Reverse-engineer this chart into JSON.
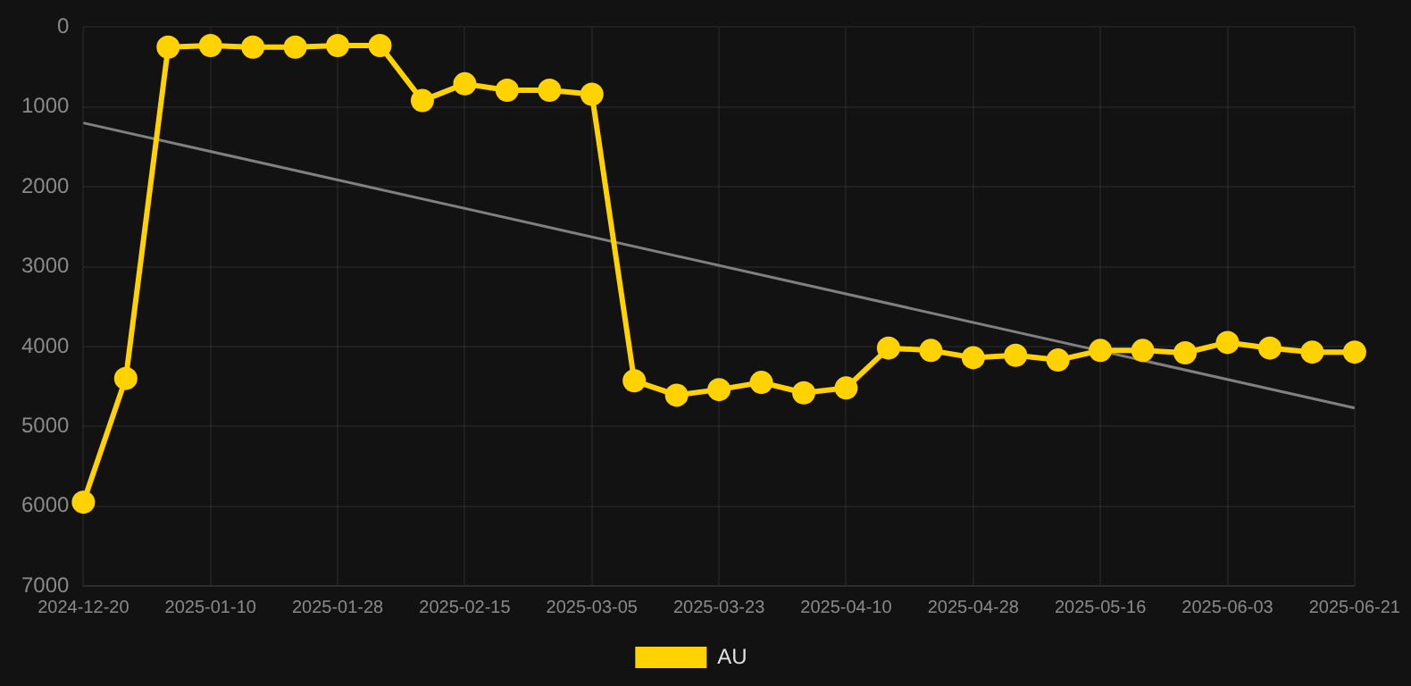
{
  "chart_data": {
    "type": "line",
    "categories": [
      "2024-12-20",
      null,
      null,
      "2025-01-10",
      null,
      null,
      "2025-01-28",
      null,
      null,
      "2025-02-15",
      null,
      null,
      "2025-03-05",
      null,
      null,
      "2025-03-23",
      null,
      null,
      "2025-04-10",
      null,
      null,
      "2025-04-28",
      null,
      null,
      "2025-05-16",
      null,
      null,
      "2025-06-03",
      null,
      null,
      "2025-06-21"
    ],
    "series": [
      {
        "name": "AU",
        "color": "#ffd200",
        "values": [
          5950,
          4400,
          250,
          230,
          250,
          250,
          230,
          230,
          920,
          710,
          790,
          790,
          840,
          4430,
          4610,
          4540,
          4450,
          4580,
          4520,
          4020,
          4050,
          4140,
          4110,
          4170,
          4050,
          4050,
          4080,
          3950,
          4020,
          4070,
          4070
        ]
      },
      {
        "type": "line",
        "color": "#808080",
        "marker": "none",
        "values": [
          1200,
          null,
          null,
          null,
          null,
          null,
          null,
          null,
          null,
          null,
          null,
          null,
          null,
          null,
          null,
          null,
          null,
          null,
          null,
          null,
          null,
          null,
          null,
          null,
          null,
          null,
          null,
          null,
          null,
          null,
          4770
        ]
      }
    ],
    "ylim": [
      7000,
      0
    ],
    "yticks": [
      0,
      1000,
      2000,
      3000,
      4000,
      5000,
      6000,
      7000
    ],
    "grid": true,
    "legend": "bottom",
    "marker": "circle"
  }
}
